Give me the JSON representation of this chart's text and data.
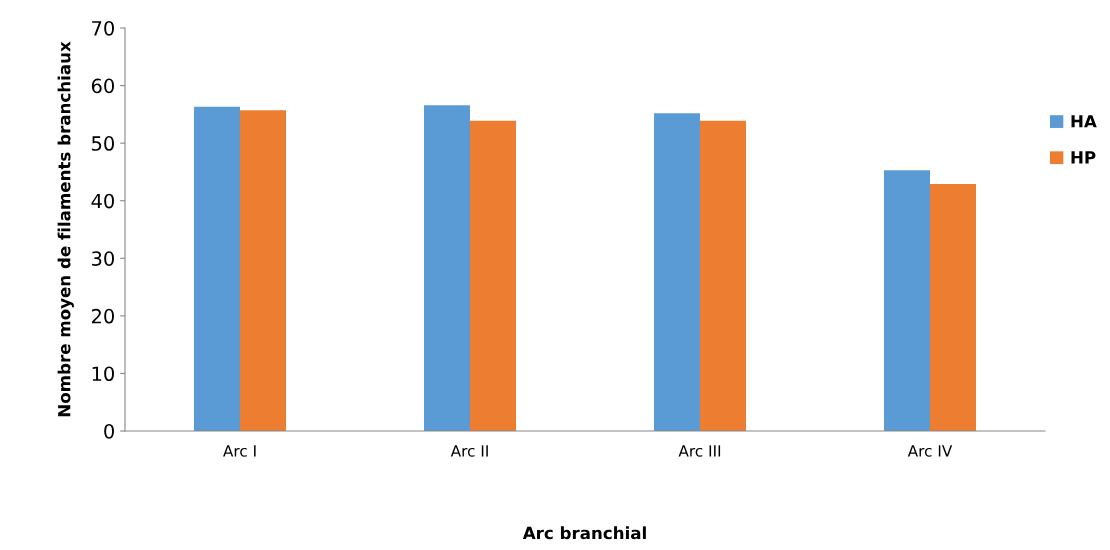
{
  "chart_data": {
    "type": "bar",
    "xlabel": "Arc branchial",
    "ylabel": "Nombre moyen de filaments branchiaux",
    "categories": [
      "Arc I",
      "Arc II",
      "Arc III",
      "Arc IV"
    ],
    "series": [
      {
        "name": "HA",
        "color": "#5b9bd5",
        "values": [
          56.3,
          56.6,
          55.2,
          45.3
        ]
      },
      {
        "name": "HP",
        "color": "#ed7d31",
        "values": [
          55.7,
          53.9,
          53.9,
          42.9
        ]
      }
    ],
    "ylim": [
      0,
      70
    ],
    "yticks": [
      0,
      10,
      20,
      30,
      40,
      50,
      60,
      70
    ],
    "grid": false,
    "legend": "right"
  }
}
